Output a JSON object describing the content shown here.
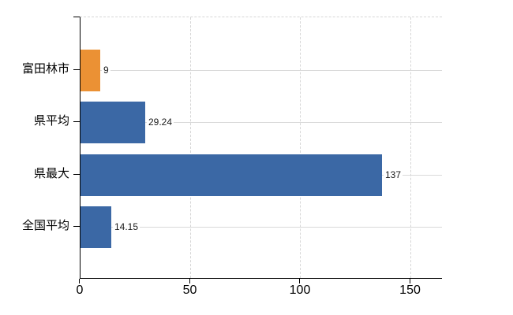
{
  "chart_data": {
    "type": "bar",
    "orientation": "horizontal",
    "title": "",
    "xlabel": "",
    "ylabel": "",
    "categories": [
      "富田林市",
      "県平均",
      "県最大",
      "全国平均"
    ],
    "values": [
      9,
      29.24,
      137,
      14.15
    ],
    "value_labels": [
      "9",
      "29.24",
      "137",
      "14.15"
    ],
    "bar_colors": [
      "#EB9134",
      "#3B68A5",
      "#3B68A5",
      "#3B68A5"
    ],
    "xlim": [
      0,
      164.5
    ],
    "x_ticks": [
      0,
      50,
      100,
      150
    ],
    "x_tick_labels": [
      "0",
      "50",
      "100",
      "150"
    ],
    "legend": "none",
    "grid": {
      "horizontal": "solid",
      "vertical": "dashed",
      "color": "#d9d9d9"
    }
  },
  "colors": {
    "highlight_bar": "#EB9134",
    "default_bar": "#3B68A5",
    "axis": "#000000",
    "grid": "#d9d9d9",
    "background": "#ffffff"
  }
}
